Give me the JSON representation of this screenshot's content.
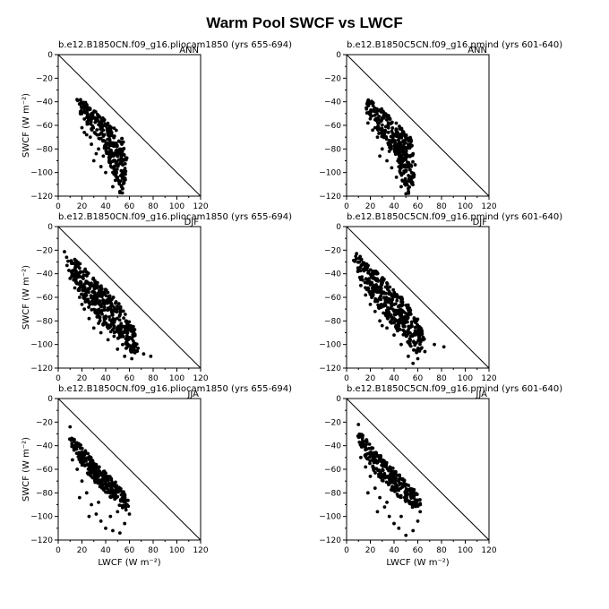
{
  "figure": {
    "title": "Warm Pool SWCF vs LWCF"
  },
  "chart_data": [
    {
      "type": "scatter",
      "title": "b.e12.B1850CN.f09_g16.pliocam1850 (yrs 655-694)",
      "season": "ANN",
      "xlabel": "",
      "ylabel": "SWCF  (W m⁻²)",
      "xlim": [
        0,
        120
      ],
      "ylim": [
        -120,
        0
      ],
      "xticks": [
        0,
        20,
        40,
        60,
        80,
        100,
        120
      ],
      "yticks": [
        0,
        -20,
        -40,
        -60,
        -80,
        -100,
        -120
      ],
      "reference_line": [
        [
          0,
          0
        ],
        [
          120,
          -120
        ]
      ],
      "cloud": {
        "poly": [
          [
            15,
            -36
          ],
          [
            24,
            -41
          ],
          [
            32,
            -48
          ],
          [
            40,
            -56
          ],
          [
            48,
            -63
          ],
          [
            54,
            -70
          ],
          [
            56,
            -78
          ],
          [
            58,
            -88
          ],
          [
            58,
            -100
          ],
          [
            56,
            -110
          ],
          [
            54,
            -118
          ],
          [
            50,
            -118
          ],
          [
            48,
            -108
          ],
          [
            45,
            -98
          ],
          [
            42,
            -88
          ],
          [
            38,
            -78
          ],
          [
            32,
            -70
          ],
          [
            26,
            -62
          ],
          [
            20,
            -54
          ],
          [
            16,
            -44
          ]
        ],
        "n": 300
      },
      "points": [
        [
          20,
          -62
        ],
        [
          24,
          -68
        ],
        [
          28,
          -76
        ],
        [
          32,
          -84
        ],
        [
          30,
          -90
        ],
        [
          36,
          -95
        ],
        [
          40,
          -100
        ],
        [
          46,
          -112
        ],
        [
          52,
          -116
        ],
        [
          50,
          -104
        ],
        [
          44,
          -92
        ],
        [
          38,
          -86
        ],
        [
          34,
          -80
        ],
        [
          27,
          -70
        ],
        [
          22,
          -66
        ]
      ]
    },
    {
      "type": "scatter",
      "title": "b.e12.B1850C5CN.f09_g16.pmind (yrs 601-640)",
      "season": "ANN",
      "xlabel": "",
      "ylabel": "",
      "xlim": [
        0,
        120
      ],
      "ylim": [
        -120,
        0
      ],
      "xticks": [
        0,
        20,
        40,
        60,
        80,
        100,
        120
      ],
      "yticks": [
        0,
        -20,
        -40,
        -60,
        -80,
        -100,
        -120
      ],
      "reference_line": [
        [
          0,
          0
        ],
        [
          120,
          -120
        ]
      ],
      "cloud": {
        "poly": [
          [
            14,
            -35
          ],
          [
            24,
            -41
          ],
          [
            32,
            -48
          ],
          [
            40,
            -56
          ],
          [
            48,
            -64
          ],
          [
            54,
            -70
          ],
          [
            56,
            -80
          ],
          [
            58,
            -92
          ],
          [
            57,
            -104
          ],
          [
            55,
            -115
          ],
          [
            52,
            -118
          ],
          [
            48,
            -110
          ],
          [
            44,
            -98
          ],
          [
            40,
            -86
          ],
          [
            34,
            -76
          ],
          [
            28,
            -68
          ],
          [
            22,
            -60
          ],
          [
            17,
            -50
          ],
          [
            14,
            -42
          ]
        ],
        "n": 320
      },
      "points": [
        [
          18,
          -58
        ],
        [
          22,
          -64
        ],
        [
          26,
          -70
        ],
        [
          30,
          -80
        ],
        [
          28,
          -86
        ],
        [
          34,
          -90
        ],
        [
          38,
          -96
        ],
        [
          42,
          -104
        ],
        [
          46,
          -112
        ],
        [
          50,
          -118
        ],
        [
          36,
          -82
        ],
        [
          24,
          -62
        ]
      ]
    },
    {
      "type": "scatter",
      "title": "b.e12.B1850CN.f09_g16.pliocam1850 (yrs 655-694)",
      "season": "DJF",
      "xlabel": "",
      "ylabel": "SWCF  (W m⁻²)",
      "xlim": [
        0,
        120
      ],
      "ylim": [
        -120,
        0
      ],
      "xticks": [
        0,
        20,
        40,
        60,
        80,
        100,
        120
      ],
      "yticks": [
        0,
        -20,
        -40,
        -60,
        -80,
        -100,
        -120
      ],
      "reference_line": [
        [
          0,
          0
        ],
        [
          120,
          -120
        ]
      ],
      "cloud": {
        "poly": [
          [
            5,
            -21
          ],
          [
            15,
            -28
          ],
          [
            25,
            -38
          ],
          [
            35,
            -48
          ],
          [
            45,
            -58
          ],
          [
            55,
            -70
          ],
          [
            62,
            -80
          ],
          [
            66,
            -92
          ],
          [
            68,
            -102
          ],
          [
            66,
            -108
          ],
          [
            60,
            -106
          ],
          [
            54,
            -100
          ],
          [
            46,
            -92
          ],
          [
            38,
            -84
          ],
          [
            28,
            -72
          ],
          [
            20,
            -60
          ],
          [
            12,
            -45
          ],
          [
            7,
            -32
          ]
        ],
        "n": 420
      },
      "points": [
        [
          10,
          -44
        ],
        [
          14,
          -52
        ],
        [
          18,
          -60
        ],
        [
          22,
          -70
        ],
        [
          26,
          -78
        ],
        [
          30,
          -86
        ],
        [
          36,
          -90
        ],
        [
          42,
          -96
        ],
        [
          50,
          -104
        ],
        [
          56,
          -110
        ],
        [
          62,
          -112
        ],
        [
          72,
          -108
        ],
        [
          78,
          -110
        ],
        [
          34,
          -82
        ],
        [
          20,
          -66
        ]
      ]
    },
    {
      "type": "scatter",
      "title": "b.e12.B1850C5CN.f09_g16.pmind (yrs 601-640)",
      "season": "DJF",
      "xlabel": "",
      "ylabel": "",
      "xlim": [
        0,
        120
      ],
      "ylim": [
        -120,
        0
      ],
      "xticks": [
        0,
        20,
        40,
        60,
        80,
        100,
        120
      ],
      "yticks": [
        0,
        -20,
        -40,
        -60,
        -80,
        -100,
        -120
      ],
      "reference_line": [
        [
          0,
          0
        ],
        [
          120,
          -120
        ]
      ],
      "cloud": {
        "poly": [
          [
            5,
            -20
          ],
          [
            15,
            -28
          ],
          [
            25,
            -38
          ],
          [
            35,
            -48
          ],
          [
            45,
            -58
          ],
          [
            55,
            -70
          ],
          [
            62,
            -82
          ],
          [
            66,
            -94
          ],
          [
            64,
            -104
          ],
          [
            58,
            -108
          ],
          [
            52,
            -100
          ],
          [
            44,
            -90
          ],
          [
            36,
            -80
          ],
          [
            26,
            -68
          ],
          [
            18,
            -56
          ],
          [
            10,
            -42
          ],
          [
            6,
            -30
          ]
        ],
        "n": 420
      },
      "points": [
        [
          12,
          -50
        ],
        [
          16,
          -58
        ],
        [
          20,
          -66
        ],
        [
          24,
          -72
        ],
        [
          28,
          -80
        ],
        [
          34,
          -86
        ],
        [
          40,
          -92
        ],
        [
          46,
          -100
        ],
        [
          52,
          -110
        ],
        [
          56,
          -116
        ],
        [
          60,
          -112
        ],
        [
          66,
          -106
        ],
        [
          74,
          -100
        ],
        [
          82,
          -102
        ],
        [
          30,
          -84
        ]
      ]
    },
    {
      "type": "scatter",
      "title": "b.e12.B1850CN.f09_g16.pliocam1850 (yrs 655-694)",
      "season": "JJA",
      "xlabel": "LWCF  (W m⁻²)",
      "ylabel": "SWCF  (W m⁻²)",
      "xlim": [
        0,
        120
      ],
      "ylim": [
        -120,
        0
      ],
      "xticks": [
        0,
        20,
        40,
        60,
        80,
        100,
        120
      ],
      "yticks": [
        0,
        -20,
        -40,
        -60,
        -80,
        -100,
        -120
      ],
      "reference_line": [
        [
          0,
          0
        ],
        [
          120,
          -120
        ]
      ],
      "cloud": {
        "poly": [
          [
            9,
            -27
          ],
          [
            16,
            -36
          ],
          [
            24,
            -45
          ],
          [
            32,
            -55
          ],
          [
            40,
            -62
          ],
          [
            48,
            -70
          ],
          [
            56,
            -80
          ],
          [
            60,
            -88
          ],
          [
            58,
            -95
          ],
          [
            52,
            -92
          ],
          [
            46,
            -86
          ],
          [
            38,
            -78
          ],
          [
            30,
            -70
          ],
          [
            22,
            -60
          ],
          [
            15,
            -48
          ],
          [
            10,
            -38
          ]
        ],
        "n": 300
      },
      "points": [
        [
          12,
          -52
        ],
        [
          16,
          -60
        ],
        [
          20,
          -70
        ],
        [
          24,
          -80
        ],
        [
          28,
          -90
        ],
        [
          32,
          -98
        ],
        [
          36,
          -104
        ],
        [
          40,
          -110
        ],
        [
          46,
          -112
        ],
        [
          52,
          -114
        ],
        [
          56,
          -106
        ],
        [
          60,
          -98
        ],
        [
          18,
          -84
        ],
        [
          26,
          -100
        ],
        [
          34,
          -88
        ],
        [
          44,
          -100
        ],
        [
          50,
          -96
        ],
        [
          10,
          -24
        ]
      ]
    },
    {
      "type": "scatter",
      "title": "b.e12.B1850C5CN.f09_g16.pmind (yrs 601-640)",
      "season": "JJA",
      "xlabel": "LWCF  (W m⁻²)",
      "ylabel": "",
      "xlim": [
        0,
        120
      ],
      "ylim": [
        -120,
        0
      ],
      "xticks": [
        0,
        20,
        40,
        60,
        80,
        100,
        120
      ],
      "yticks": [
        0,
        -20,
        -40,
        -60,
        -80,
        -100,
        -120
      ],
      "reference_line": [
        [
          0,
          0
        ],
        [
          120,
          -120
        ]
      ],
      "cloud": {
        "poly": [
          [
            9,
            -26
          ],
          [
            16,
            -34
          ],
          [
            24,
            -43
          ],
          [
            32,
            -52
          ],
          [
            40,
            -60
          ],
          [
            48,
            -68
          ],
          [
            56,
            -76
          ],
          [
            62,
            -82
          ],
          [
            64,
            -90
          ],
          [
            58,
            -94
          ],
          [
            52,
            -90
          ],
          [
            44,
            -84
          ],
          [
            36,
            -76
          ],
          [
            28,
            -68
          ],
          [
            20,
            -58
          ],
          [
            14,
            -46
          ],
          [
            10,
            -36
          ]
        ],
        "n": 300
      },
      "points": [
        [
          12,
          -50
        ],
        [
          16,
          -58
        ],
        [
          20,
          -66
        ],
        [
          24,
          -76
        ],
        [
          28,
          -84
        ],
        [
          32,
          -92
        ],
        [
          36,
          -100
        ],
        [
          40,
          -106
        ],
        [
          44,
          -110
        ],
        [
          50,
          -116
        ],
        [
          56,
          -112
        ],
        [
          60,
          -104
        ],
        [
          62,
          -96
        ],
        [
          18,
          -80
        ],
        [
          26,
          -96
        ],
        [
          34,
          -88
        ],
        [
          46,
          -100
        ],
        [
          10,
          -22
        ]
      ]
    }
  ]
}
